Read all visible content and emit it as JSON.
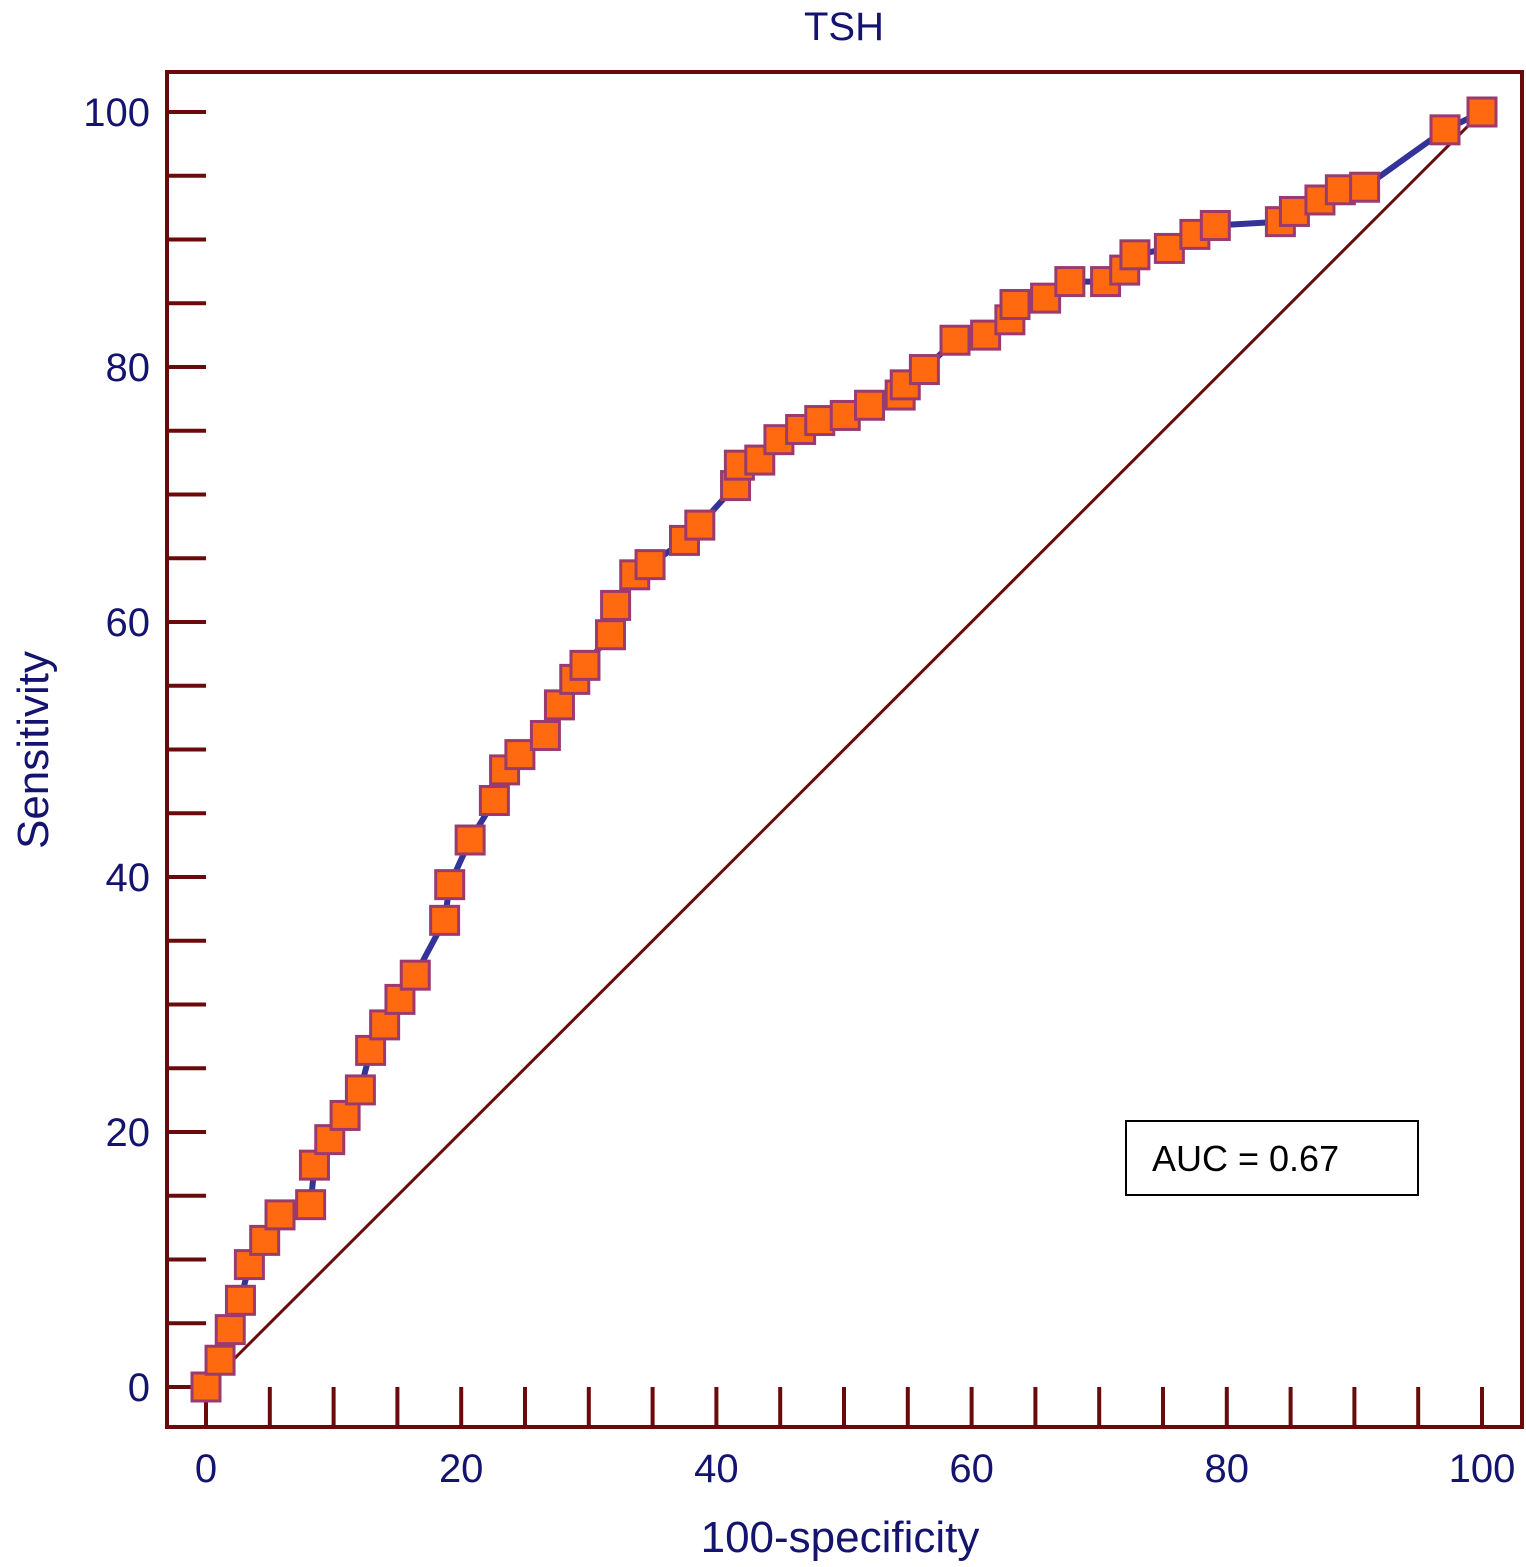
{
  "chart_data": {
    "type": "line",
    "title": "TSH",
    "xlabel": "100-specificity",
    "ylabel": "Sensitivity",
    "xlim": [
      0,
      100
    ],
    "ylim": [
      0,
      100
    ],
    "xticks": [
      0,
      20,
      40,
      60,
      80,
      100
    ],
    "yticks": [
      0,
      20,
      40,
      60,
      80,
      100
    ],
    "xtick_labels": [
      "0",
      "20",
      "40",
      "60",
      "80",
      "100"
    ],
    "ytick_labels": [
      "0",
      "20",
      "40",
      "60",
      "80",
      "100"
    ],
    "minor_tick_step": 5,
    "grid": false,
    "annotation": "AUC = 0.67",
    "annotation_position": "bottom-right",
    "series": [
      {
        "name": "ROC curve",
        "color": "#33339a",
        "marker_fill": "#ff6a10",
        "marker_edge": "#9a3a6e",
        "x": [
          0,
          1.1,
          1.9,
          2.7,
          3.4,
          4.6,
          5.8,
          8.2,
          8.5,
          9.7,
          10.9,
          12.1,
          12.9,
          14.0,
          15.2,
          16.4,
          18.7,
          19.1,
          20.7,
          22.6,
          23.4,
          24.6,
          26.6,
          27.7,
          28.9,
          29.7,
          31.7,
          32.1,
          33.6,
          34.8,
          37.5,
          38.7,
          41.5,
          41.8,
          43.4,
          44.9,
          46.6,
          48.1,
          50.1,
          52.0,
          54.4,
          54.8,
          56.3,
          58.7,
          61.1,
          63.0,
          63.4,
          65.8,
          67.7,
          70.5,
          72.0,
          72.8,
          75.5,
          77.5,
          79.1,
          84.2,
          85.3,
          87.3,
          88.9,
          90.8,
          97.1,
          100
        ],
        "y": [
          0,
          2.1,
          4.5,
          6.8,
          9.6,
          11.5,
          13.5,
          14.3,
          17.4,
          19.4,
          21.3,
          23.3,
          26.4,
          28.4,
          30.4,
          32.3,
          36.6,
          39.4,
          42.9,
          46.0,
          48.4,
          49.6,
          51.1,
          53.5,
          55.5,
          56.6,
          59.0,
          61.3,
          63.7,
          64.5,
          66.4,
          67.6,
          70.7,
          72.3,
          72.7,
          74.3,
          75.1,
          75.8,
          76.2,
          77.0,
          77.8,
          78.6,
          79.8,
          82.1,
          82.5,
          83.7,
          84.9,
          85.4,
          86.7,
          86.7,
          87.6,
          88.8,
          89.3,
          90.4,
          91.1,
          91.4,
          92.2,
          93.1,
          93.9,
          94.1,
          98.6,
          100
        ]
      },
      {
        "name": "Reference diagonal",
        "color": "#6b0a0a",
        "x": [
          0,
          100
        ],
        "y": [
          0,
          100
        ]
      }
    ],
    "frame_color": "#6b0a0a",
    "text_color": "#14146e"
  }
}
